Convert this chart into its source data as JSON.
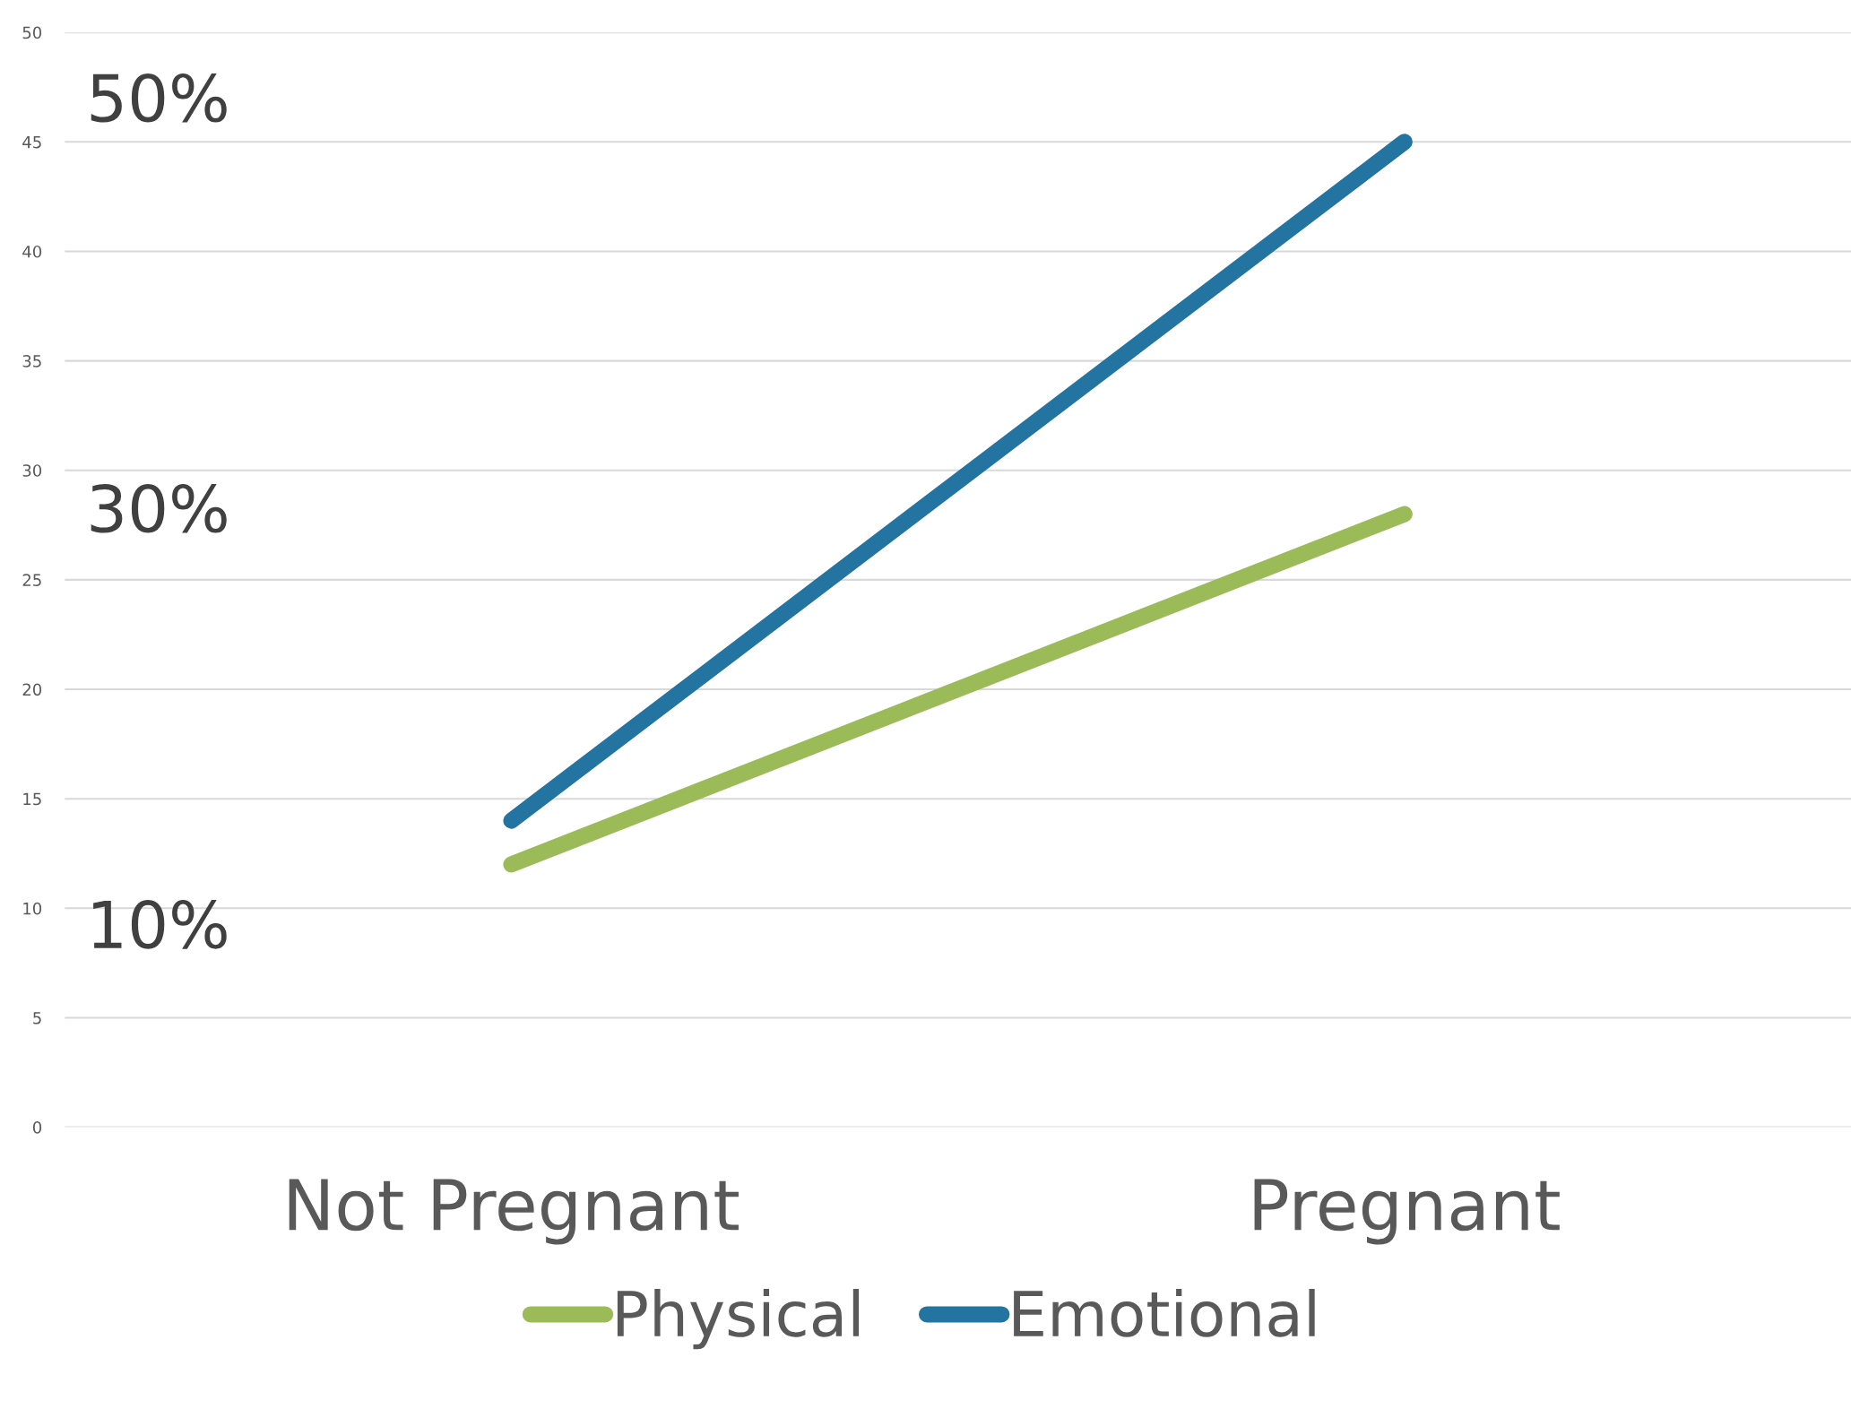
{
  "chart_data": {
    "type": "line",
    "categories": [
      "Not Pregnant",
      "Pregnant"
    ],
    "series": [
      {
        "name": "Physical",
        "color": "#9bbb59",
        "values": [
          12,
          28
        ]
      },
      {
        "name": "Emotional",
        "color": "#2474a1",
        "values": [
          14,
          45
        ]
      }
    ],
    "ylim": [
      0,
      50
    ],
    "yticks": [
      0,
      5,
      10,
      15,
      20,
      25,
      30,
      35,
      40,
      45,
      50
    ],
    "grid": "y",
    "legend": "bottom",
    "marker": "none",
    "line_style": "solid",
    "annotations": [
      "50%",
      "30%",
      "10%"
    ]
  }
}
